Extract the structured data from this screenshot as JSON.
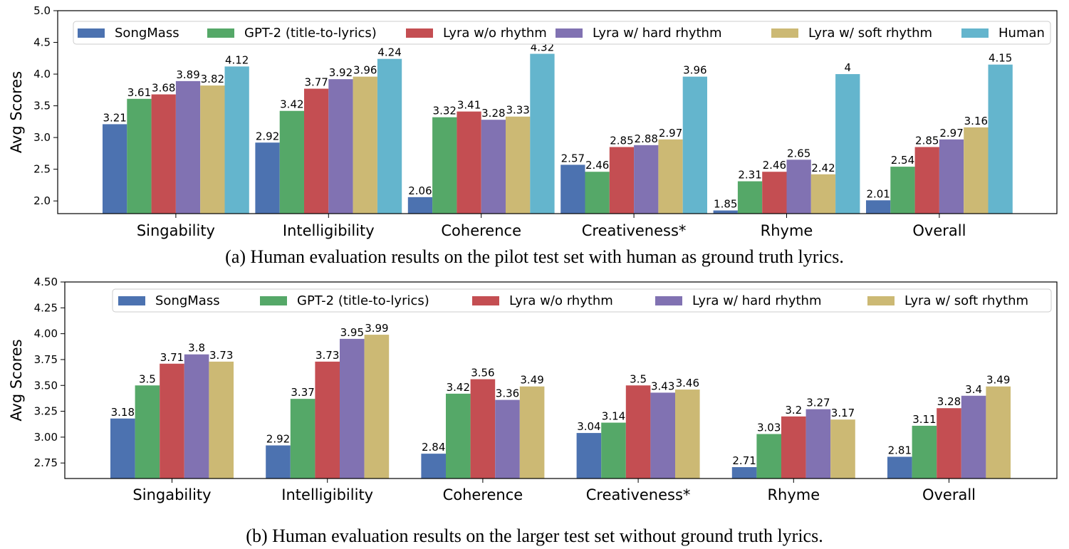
{
  "figure": {
    "caption_a": "(a) Human evaluation results on the pilot test set with human as ground truth lyrics.",
    "caption_b": "(b) Human evaluation results on the larger test set without ground truth lyrics."
  },
  "colors": {
    "SongMass": "#4c72b0",
    "GPT-2 (title-to-lyrics)": "#55a868",
    "Lyra w/o rhythm": "#c44e52",
    "Lyra w/ hard rhythm": "#8172b2",
    "Lyra w/ soft rhythm": "#ccb974",
    "Human": "#64b5cd"
  },
  "chart_data": [
    {
      "type": "bar",
      "title": "",
      "xlabel": "",
      "ylabel": "Avg Scores",
      "ylim": [
        1.8,
        5.0
      ],
      "yticks": [
        2.0,
        2.5,
        3.0,
        3.5,
        4.0,
        4.5,
        5.0
      ],
      "ytick_labels": [
        "2.0",
        "2.5",
        "3.0",
        "3.5",
        "4.0",
        "4.5",
        "5.0"
      ],
      "categories": [
        "Singability",
        "Intelligibility",
        "Coherence",
        "Creativeness*",
        "Rhyme",
        "Overall"
      ],
      "legend_position": "top",
      "series": [
        {
          "name": "SongMass",
          "values": [
            3.21,
            2.92,
            2.06,
            2.57,
            1.85,
            2.01
          ],
          "labels": [
            "3.21",
            "2.92",
            "2.06",
            "2.57",
            "1.85",
            "2.01"
          ]
        },
        {
          "name": "GPT-2 (title-to-lyrics)",
          "values": [
            3.61,
            3.42,
            3.32,
            2.46,
            2.31,
            2.54
          ],
          "labels": [
            "3.61",
            "3.42",
            "3.32",
            "2.46",
            "2.31",
            "2.54"
          ]
        },
        {
          "name": "Lyra w/o rhythm",
          "values": [
            3.68,
            3.77,
            3.41,
            2.85,
            2.46,
            2.85
          ],
          "labels": [
            "3.68",
            "3.77",
            "3.41",
            "2.85",
            "2.46",
            "2.85"
          ]
        },
        {
          "name": "Lyra w/ hard rhythm",
          "values": [
            3.89,
            3.92,
            3.28,
            2.88,
            2.65,
            2.97
          ],
          "labels": [
            "3.89",
            "3.92",
            "3.28",
            "2.88",
            "2.65",
            "2.97"
          ]
        },
        {
          "name": "Lyra w/ soft rhythm",
          "values": [
            3.82,
            3.96,
            3.33,
            2.97,
            2.42,
            3.16
          ],
          "labels": [
            "3.82",
            "3.96",
            "3.33",
            "2.97",
            "2.42",
            "3.16"
          ]
        },
        {
          "name": "Human",
          "values": [
            4.12,
            4.24,
            4.32,
            3.96,
            4.0,
            4.15
          ],
          "labels": [
            "4.12",
            "4.24",
            "4.32",
            "3.96",
            "4",
            "4.15"
          ]
        }
      ]
    },
    {
      "type": "bar",
      "title": "",
      "xlabel": "",
      "ylabel": "Avg Scores",
      "ylim": [
        2.6,
        4.5
      ],
      "yticks": [
        2.75,
        3.0,
        3.25,
        3.5,
        3.75,
        4.0,
        4.25,
        4.5
      ],
      "ytick_labels": [
        "2.75",
        "3.00",
        "3.25",
        "3.50",
        "3.75",
        "4.00",
        "4.25",
        "4.50"
      ],
      "categories": [
        "Singability",
        "Intelligibility",
        "Coherence",
        "Creativeness*",
        "Rhyme",
        "Overall"
      ],
      "legend_position": "top",
      "series": [
        {
          "name": "SongMass",
          "values": [
            3.18,
            2.92,
            2.84,
            3.04,
            2.71,
            2.81
          ],
          "labels": [
            "3.18",
            "2.92",
            "2.84",
            "3.04",
            "2.71",
            "2.81"
          ]
        },
        {
          "name": "GPT-2 (title-to-lyrics)",
          "values": [
            3.5,
            3.37,
            3.42,
            3.14,
            3.03,
            3.11
          ],
          "labels": [
            "3.5",
            "3.37",
            "3.42",
            "3.14",
            "3.03",
            "3.11"
          ]
        },
        {
          "name": "Lyra w/o rhythm",
          "values": [
            3.71,
            3.73,
            3.56,
            3.5,
            3.2,
            3.28
          ],
          "labels": [
            "3.71",
            "3.73",
            "3.56",
            "3.5",
            "3.2",
            "3.28"
          ]
        },
        {
          "name": "Lyra w/ hard rhythm",
          "values": [
            3.8,
            3.95,
            3.36,
            3.43,
            3.27,
            3.4
          ],
          "labels": [
            "3.8",
            "3.95",
            "3.36",
            "3.43",
            "3.27",
            "3.4"
          ]
        },
        {
          "name": "Lyra w/ soft rhythm",
          "values": [
            3.73,
            3.99,
            3.49,
            3.46,
            3.17,
            3.49
          ],
          "labels": [
            "3.73",
            "3.99",
            "3.49",
            "3.46",
            "3.17",
            "3.49"
          ]
        }
      ]
    }
  ]
}
